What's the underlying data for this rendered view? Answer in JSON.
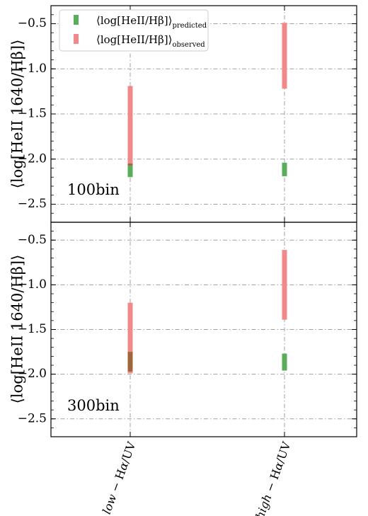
{
  "chart_data": [
    {
      "type": "range_bar",
      "panel_label": "100bin",
      "ylabel": "⟨log[HeII 1640/Hβ]⟩",
      "ylim": [
        -2.7,
        -0.3
      ],
      "yticks": [
        -0.5,
        -1.0,
        -1.5,
        -2.0,
        -2.5
      ],
      "ytick_labels": [
        "−0.5",
        "−1.0",
        "−1.5",
        "−2.0",
        "−2.5"
      ],
      "grid": true,
      "legend_placement": "top-left",
      "categories": [
        "low − Hα/UV",
        "high − Hα/UV"
      ],
      "series": [
        {
          "name": "predicted",
          "ranges": [
            [
              -2.2,
              -2.05
            ],
            [
              -2.19,
              -2.04
            ]
          ]
        },
        {
          "name": "observed",
          "ranges": [
            [
              -2.07,
              -1.19
            ],
            [
              -1.22,
              -0.49
            ]
          ]
        }
      ]
    },
    {
      "type": "range_bar",
      "panel_label": "300bin",
      "ylabel": "⟨log[HeII 1640/Hβ]⟩",
      "ylim": [
        -2.7,
        -0.3
      ],
      "yticks": [
        -0.5,
        -1.0,
        -1.5,
        -2.0,
        -2.5
      ],
      "ytick_labels": [
        "−0.5",
        "−1.0",
        "−1.5",
        "−2.0",
        "−2.5"
      ],
      "grid": true,
      "categories": [
        "low − Hα/UV",
        "high − Hα/UV"
      ],
      "series": [
        {
          "name": "predicted",
          "ranges": [
            [
              -1.97,
              -1.75
            ],
            [
              -1.96,
              -1.77
            ]
          ]
        },
        {
          "name": "observed",
          "ranges": [
            [
              -1.99,
              -1.2
            ],
            [
              -1.39,
              -0.61
            ]
          ]
        }
      ]
    }
  ],
  "legend": {
    "items": [
      {
        "main": "⟨log[HeII/Hβ]⟩",
        "sub": "predicted",
        "color": "#5aae5a"
      },
      {
        "main": "⟨log[HeII/Hβ]⟩",
        "sub": "observed",
        "color": "#f08a8a"
      }
    ]
  },
  "x_axis": {
    "labels": [
      {
        "prefix": "low",
        "mid": " − H",
        "greek": "α",
        "suffix": "/UV"
      },
      {
        "prefix": "high",
        "mid": " − H",
        "greek": "α",
        "suffix": "/UV"
      }
    ]
  },
  "colors": {
    "predicted": "#5aae5a",
    "observed": "#f08a8a",
    "overlap": "#a0663a",
    "grid": "#a0a0a0",
    "axes": "#000000"
  }
}
